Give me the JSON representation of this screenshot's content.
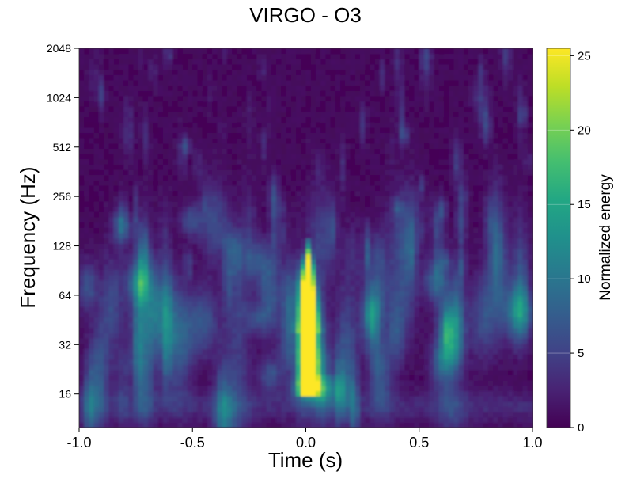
{
  "chart_data": {
    "type": "heatmap",
    "title": "VIRGO - O3",
    "xlabel": "Time (s)",
    "ylabel": "Frequency (Hz)",
    "xlim": [
      -1.0,
      1.0
    ],
    "ylim": [
      10,
      2048
    ],
    "yscale": "log2",
    "x_ticks": [
      {
        "value": -1.0,
        "label": "-1.0"
      },
      {
        "value": -0.5,
        "label": "-0.5"
      },
      {
        "value": 0.0,
        "label": "0.0"
      },
      {
        "value": 0.5,
        "label": "0.5"
      },
      {
        "value": 1.0,
        "label": "1.0"
      }
    ],
    "y_ticks": [
      {
        "value": 16,
        "label": "16"
      },
      {
        "value": 32,
        "label": "32"
      },
      {
        "value": 64,
        "label": "64"
      },
      {
        "value": 128,
        "label": "128"
      },
      {
        "value": 256,
        "label": "256"
      },
      {
        "value": 512,
        "label": "512"
      },
      {
        "value": 1024,
        "label": "1024"
      },
      {
        "value": 2048,
        "label": "2048"
      }
    ],
    "colorbar": {
      "label": "Normalized energy",
      "colormap": "viridis",
      "range": [
        0,
        25.5
      ],
      "ticks": [
        {
          "value": 0,
          "label": "0"
        },
        {
          "value": 5,
          "label": "5"
        },
        {
          "value": 10,
          "label": "10"
        },
        {
          "value": 15,
          "label": "15"
        },
        {
          "value": 20,
          "label": "20"
        },
        {
          "value": 25,
          "label": "25"
        }
      ]
    },
    "grid": false,
    "feature": {
      "name": "signal",
      "time": 0.0,
      "freq_min": 18,
      "freq_max": 128,
      "peak_energy": 25.5
    },
    "colors": {
      "background": "#440154",
      "peak": "#fde725"
    }
  }
}
